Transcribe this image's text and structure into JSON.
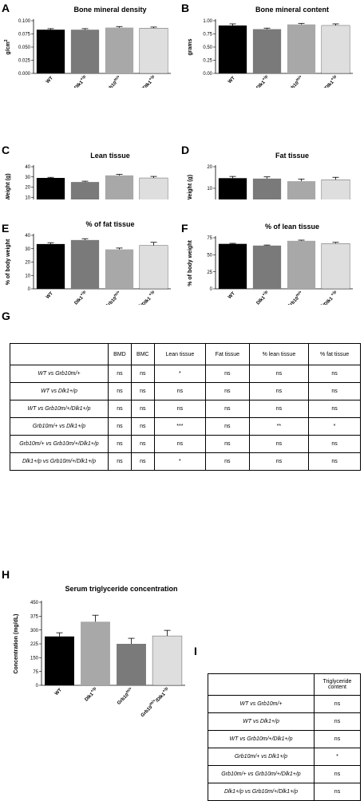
{
  "panels": {
    "A": "A",
    "B": "B",
    "C": "C",
    "D": "D",
    "E": "E",
    "F": "F",
    "G": "G",
    "H": "H",
    "I": "I"
  },
  "groups": [
    "WT",
    "Dlk1+/p",
    "Grb10m/+",
    "Grb10m/+/Dlk1+/p"
  ],
  "colors": [
    "#000000",
    "#7a7a7a",
    "#a8a8a8",
    "#dedede"
  ],
  "chart_data": [
    {
      "id": "A",
      "type": "bar",
      "title": "Bone mineral density",
      "ylabel": "g/cm2",
      "ylim": [
        0,
        0.1
      ],
      "yticks": [
        "0.000",
        "0.025",
        "0.050",
        "0.075",
        "0.100"
      ],
      "yticks_values": [
        0,
        0.025,
        0.05,
        0.075,
        0.1
      ],
      "categories": [
        "WT",
        "Dlk1+/p",
        "Grb10m/+",
        "Grb10m/+/Dlk1+/p"
      ],
      "values": [
        0.083,
        0.083,
        0.087,
        0.086
      ],
      "errors": [
        0.002,
        0.002,
        0.002,
        0.002
      ],
      "colors": [
        "#000000",
        "#7a7a7a",
        "#a8a8a8",
        "#dedede"
      ]
    },
    {
      "id": "B",
      "type": "bar",
      "title": "Bone mineral content",
      "ylabel": "grams",
      "ylim": [
        0,
        1
      ],
      "yticks": [
        "0.00",
        "0.25",
        "0.50",
        "0.75",
        "1.00"
      ],
      "yticks_values": [
        0,
        0.25,
        0.5,
        0.75,
        1
      ],
      "categories": [
        "WT",
        "Dlk1+/p",
        "Grb10m/+",
        "Grb10m/+/Dlk1+/p"
      ],
      "values": [
        0.91,
        0.84,
        0.93,
        0.91
      ],
      "errors": [
        0.03,
        0.02,
        0.02,
        0.03
      ],
      "colors": [
        "#000000",
        "#7a7a7a",
        "#a8a8a8",
        "#dedede"
      ]
    },
    {
      "id": "C",
      "type": "bar",
      "title": "Lean tissue",
      "ylabel": "Weight (g)",
      "ylim": [
        0,
        40
      ],
      "yticks": [
        "0",
        "10",
        "20",
        "30",
        "40"
      ],
      "yticks_values": [
        0,
        10,
        20,
        30,
        40
      ],
      "categories": [
        "WT",
        "Dlk1+/p",
        "Grb10m/+",
        "Grb10m/+/Dlk1 +/p"
      ],
      "values": [
        29,
        25,
        31.5,
        29
      ],
      "errors": [
        0.6,
        0.8,
        1,
        1.5
      ],
      "colors": [
        "#000000",
        "#7a7a7a",
        "#a8a8a8",
        "#dedede"
      ]
    },
    {
      "id": "D",
      "type": "bar",
      "title": "Fat tissue",
      "ylabel": "Weight (g)",
      "ylim": [
        0,
        20
      ],
      "yticks": [
        "0",
        "10",
        "20"
      ],
      "yticks_values": [
        0,
        10,
        20
      ],
      "categories": [
        "WT",
        "Dlk1+/p",
        "Grb10m/+",
        "Grb10 m/+/Dlk1 +/p"
      ],
      "values": [
        14.7,
        14.5,
        13.3,
        14
      ],
      "errors": [
        0.8,
        0.8,
        1,
        1.1
      ],
      "colors": [
        "#000000",
        "#7a7a7a",
        "#a8a8a8",
        "#dedede"
      ]
    },
    {
      "id": "E",
      "type": "bar",
      "title": "% of fat tissue",
      "ylabel": "% of body weight",
      "ylim": [
        0,
        40
      ],
      "yticks": [
        "0",
        "10",
        "20",
        "30",
        "40"
      ],
      "yticks_values": [
        0,
        10,
        20,
        30,
        40
      ],
      "categories": [
        "WT",
        "Dlk1+/p",
        "Grb10m/+",
        "Grb10 m/+/Dlk1 +/p"
      ],
      "values": [
        33.5,
        36.5,
        29.5,
        32.5
      ],
      "errors": [
        1,
        1,
        1,
        2.3
      ],
      "colors": [
        "#000000",
        "#7a7a7a",
        "#a8a8a8",
        "#dedede"
      ]
    },
    {
      "id": "F",
      "type": "bar",
      "title": "% of lean tissue",
      "ylabel": "% of body weight",
      "ylim": [
        0,
        75
      ],
      "yticks": [
        "0",
        "25",
        "50",
        "75"
      ],
      "yticks_values": [
        0,
        25,
        50,
        75
      ],
      "categories": [
        "WT",
        "Dlk1+/p",
        "Grb10m/+",
        "Grb10 m/+/Dlk1 +/p"
      ],
      "values": [
        66,
        63.5,
        70.5,
        66.5
      ],
      "errors": [
        0.8,
        0.8,
        1,
        1.8
      ],
      "colors": [
        "#000000",
        "#7a7a7a",
        "#a8a8a8",
        "#dedede"
      ]
    },
    {
      "id": "H",
      "type": "bar",
      "title": "Serum triglyceride concentration",
      "ylabel": "Concentration (mg/dL)",
      "ylim": [
        0,
        450
      ],
      "yticks": [
        "0",
        "75",
        "150",
        "225",
        "300",
        "375",
        "450"
      ],
      "yticks_values": [
        0,
        75,
        150,
        225,
        300,
        375,
        450
      ],
      "categories": [
        "WT",
        "Dlk1+/p",
        "Grb10m/+",
        "Grb10m/+/Dlk1+/p"
      ],
      "values": [
        265,
        345,
        225,
        268
      ],
      "errors": [
        20,
        35,
        30,
        30
      ],
      "colors": [
        "#000000",
        "#a8a8a8",
        "#7a7a7a",
        "#dedede"
      ]
    }
  ],
  "tableG": {
    "headers": [
      "",
      "BMD",
      "BMC",
      "Lean tissue",
      "Fat tissue",
      "% lean tissue",
      "% fat tissue"
    ],
    "rows": [
      {
        "label": "WT vs Grb10m/+",
        "cells": [
          "ns",
          "ns",
          "*",
          "ns",
          "ns",
          "ns"
        ]
      },
      {
        "label": "WT vs Dlk1+/p",
        "cells": [
          "ns",
          "ns",
          "ns",
          "ns",
          "ns",
          "ns"
        ]
      },
      {
        "label": "WT vs Grb10m/+/Dlk1+/p",
        "cells": [
          "ns",
          "ns",
          "ns",
          "ns",
          "ns",
          "ns"
        ]
      },
      {
        "label": "Grb10m/+ vs Dlk1+/p",
        "cells": [
          "ns",
          "ns",
          "***",
          "ns",
          "**",
          "*"
        ]
      },
      {
        "label": "Grb10m/+ vs Grb10m/+/Dlk1+/p",
        "cells": [
          "ns",
          "ns",
          "ns",
          "ns",
          "ns",
          "ns"
        ]
      },
      {
        "label": "Dlk1+/p vs Grb10m/+/Dlk1+/p",
        "cells": [
          "ns",
          "ns",
          "*",
          "ns",
          "ns",
          "ns"
        ]
      }
    ]
  },
  "tableI": {
    "headers": [
      "",
      "Triglyceride content"
    ],
    "rows": [
      {
        "label": "WT vs Grb10m/+",
        "cells": [
          "ns"
        ]
      },
      {
        "label": "WT vs Dlk1+/p",
        "cells": [
          "ns"
        ]
      },
      {
        "label": "WT vs Grb10m/+/Dlk1+/p",
        "cells": [
          "ns"
        ]
      },
      {
        "label": "Grb10m/+ vs Dlk1+/p",
        "cells": [
          "*"
        ]
      },
      {
        "label": "Grb10m/+ vs Grb10m/+/Dlk1+/p",
        "cells": [
          "ns"
        ]
      },
      {
        "label": "Dlk1+/p vs Grb10m/+/Dlk1+/p",
        "cells": [
          "ns"
        ]
      }
    ]
  }
}
